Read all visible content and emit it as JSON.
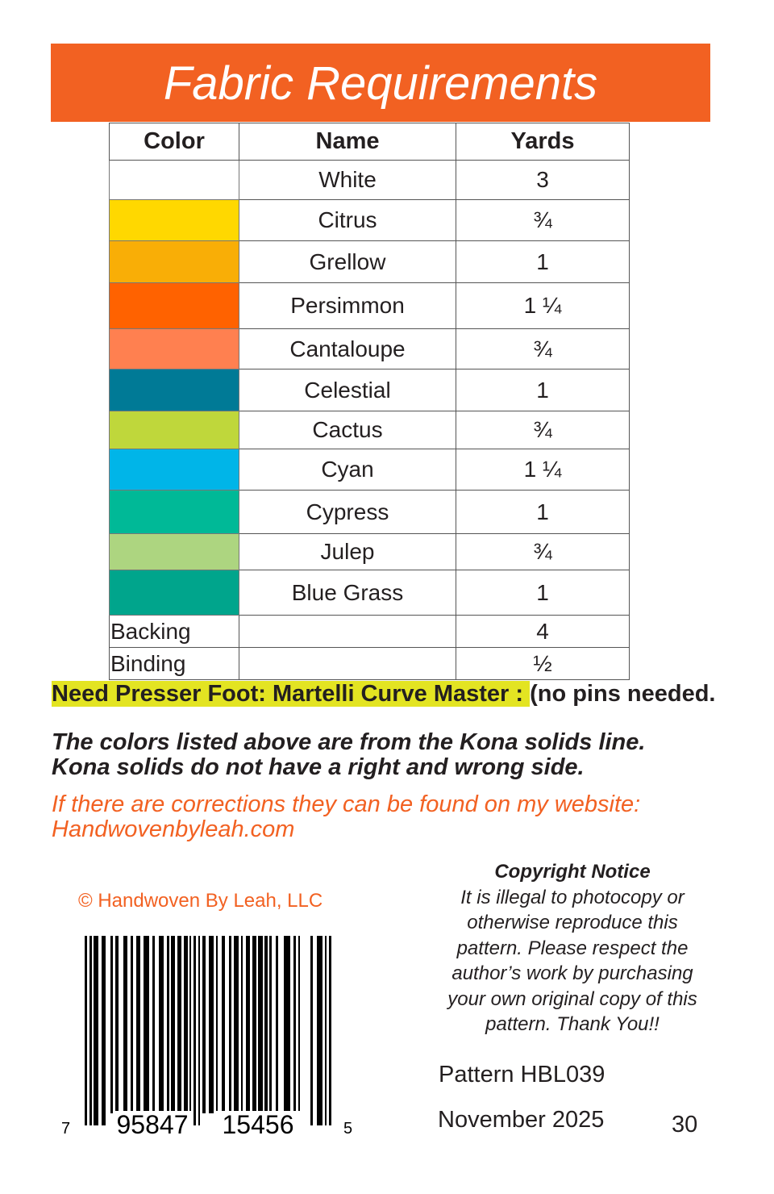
{
  "title": "Fabric Requirements",
  "colors": {
    "accent": "#f26122",
    "highlight": "#e3e422"
  },
  "table": {
    "headers": [
      "Color",
      "Name",
      "Yards"
    ],
    "rows": [
      {
        "color": "#ffffff",
        "name": "White",
        "yards": "3"
      },
      {
        "color": "#ffd800",
        "name": "Citrus",
        "yards": "¾"
      },
      {
        "color": "#f9ae06",
        "name": "Grellow",
        "yards": "1"
      },
      {
        "color": "#ff6200",
        "name": "Persimmon",
        "yards": "1 ¼"
      },
      {
        "color": "#ff8050",
        "name": "Cantaloupe",
        "yards": "¾"
      },
      {
        "color": "#007a96",
        "name": "Celestial",
        "yards": "1"
      },
      {
        "color": "#bfd73b",
        "name": "Cactus",
        "yards": "¾"
      },
      {
        "color": "#00b5e8",
        "name": "Cyan",
        "yards": "1 ¼"
      },
      {
        "color": "#00b997",
        "name": "Cypress",
        "yards": "1"
      },
      {
        "color": "#add580",
        "name": "Julep",
        "yards": "¾"
      },
      {
        "color": "#00a58c",
        "name": "Blue Grass",
        "yards": "1"
      }
    ],
    "extra_rows": [
      {
        "label": "Backing",
        "name": "",
        "yards": "4"
      },
      {
        "label": "Binding",
        "name": "",
        "yards": "½"
      }
    ]
  },
  "presser_foot": {
    "highlighted": "Need Presser Foot: Martelli Curve Master : ",
    "rest": "(no pins needed."
  },
  "kona_note": {
    "line1": "The colors listed above are from the Kona solids line.",
    "line2": "Kona solids do not have a right and wrong side."
  },
  "corrections": {
    "line1": "If there are corrections they can be found on my website:",
    "line2": "Handwovenbyleah.com"
  },
  "copyright_owner": "© Handwoven By Leah, LLC",
  "copyright_notice": {
    "title": "Copyright Notice",
    "lines": [
      "It is illegal to photocopy or",
      "otherwise reproduce this",
      "pattern. Please respect the",
      "author’s work by purchasing",
      "your own original copy of this",
      "pattern. Thank You!!"
    ]
  },
  "pattern_number": "Pattern HBL039",
  "date": "November 2025",
  "page_number": "30",
  "barcode": {
    "first": "7",
    "left_group": "95847",
    "right_group": "15456",
    "check": "5"
  }
}
